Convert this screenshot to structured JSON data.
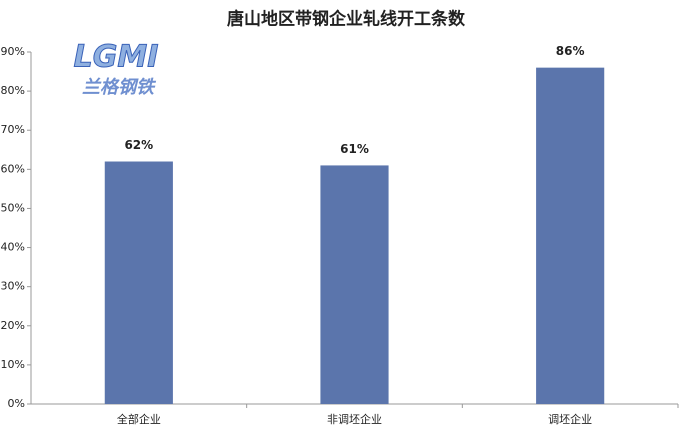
{
  "chart_data": {
    "type": "bar",
    "title": "唐山地区带钢企业轧线开工条数",
    "watermark": {
      "logo": "LGMI",
      "text": "兰格钢铁"
    },
    "categories": [
      "全部企业",
      "非调坯企业",
      "调坯企业"
    ],
    "values": [
      62,
      61,
      86
    ],
    "value_labels": [
      "62%",
      "61%",
      "86%"
    ],
    "color": "#5b75ac",
    "ylim": [
      0,
      90
    ],
    "yticks": [
      {
        "value": 0,
        "label": "0%"
      },
      {
        "value": 10,
        "label": "10%"
      },
      {
        "value": 20,
        "label": "20%"
      },
      {
        "value": 30,
        "label": "30%"
      },
      {
        "value": 40,
        "label": "40%"
      },
      {
        "value": 50,
        "label": "50%"
      },
      {
        "value": 60,
        "label": "60%"
      },
      {
        "value": 70,
        "label": "70%"
      },
      {
        "value": 80,
        "label": "80%"
      },
      {
        "value": 90,
        "label": "90%"
      }
    ],
    "grid": false
  }
}
